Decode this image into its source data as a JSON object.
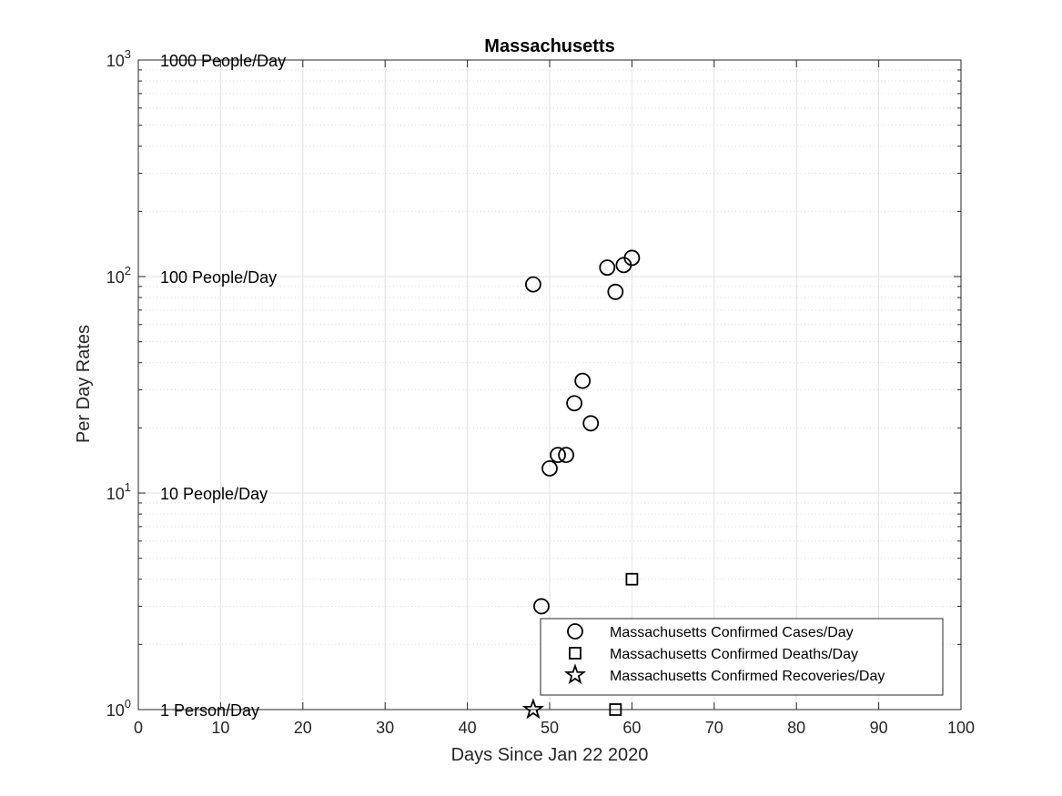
{
  "chart_data": {
    "type": "scatter",
    "title": "Massachusetts",
    "xlabel": "Days Since Jan 22 2020",
    "ylabel": "Per Day Rates",
    "xlim": [
      0,
      100
    ],
    "ylim": [
      1,
      1000
    ],
    "y_scale": "log",
    "grid": true,
    "legend_position": "bottom-right",
    "x_ticks": [
      "0",
      "10",
      "20",
      "30",
      "40",
      "50",
      "60",
      "70",
      "80",
      "90",
      "100"
    ],
    "y_ticks": [
      {
        "base": "10",
        "exp": "0"
      },
      {
        "base": "10",
        "exp": "1"
      },
      {
        "base": "10",
        "exp": "2"
      },
      {
        "base": "10",
        "exp": "3"
      }
    ],
    "annotations": [
      {
        "text": "1000 People/Day",
        "y": 1000
      },
      {
        "text": "100 People/Day",
        "y": 100
      },
      {
        "text": "10 People/Day",
        "y": 10
      },
      {
        "text": "1 Person/Day",
        "y": 1
      }
    ],
    "series": [
      {
        "name": "Massachusetts Confirmed Cases/Day",
        "marker": "circle",
        "points": [
          [
            48,
            92
          ],
          [
            49,
            3
          ],
          [
            50,
            13
          ],
          [
            51,
            15
          ],
          [
            52,
            15
          ],
          [
            53,
            26
          ],
          [
            54,
            33
          ],
          [
            55,
            21
          ],
          [
            57,
            110
          ],
          [
            58,
            85
          ],
          [
            59,
            113
          ],
          [
            60,
            122
          ]
        ]
      },
      {
        "name": "Massachusetts Confirmed Deaths/Day",
        "marker": "square",
        "points": [
          [
            58,
            1
          ],
          [
            60,
            4
          ]
        ]
      },
      {
        "name": "Massachusetts Confirmed Recoveries/Day",
        "marker": "star",
        "points": [
          [
            48,
            1
          ]
        ]
      }
    ]
  }
}
